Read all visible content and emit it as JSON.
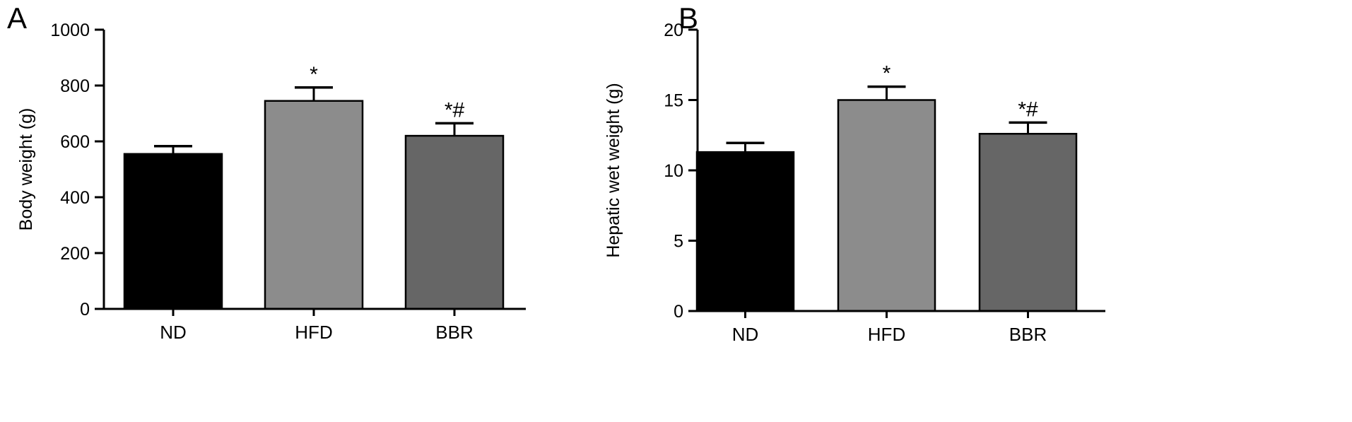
{
  "figure": {
    "panels": [
      {
        "letter": "A"
      },
      {
        "letter": "B"
      }
    ]
  },
  "chart_data": [
    {
      "type": "bar",
      "panel": "A",
      "title": "",
      "xlabel": "",
      "ylabel": "Body weight (g)",
      "ylim": [
        0,
        1000
      ],
      "yticks": [
        0,
        200,
        400,
        600,
        800,
        1000
      ],
      "categories": [
        "ND",
        "HFD",
        "BBR"
      ],
      "values": [
        555,
        745,
        620
      ],
      "errors": [
        28,
        48,
        45
      ],
      "annotations": [
        "",
        "*",
        "*#"
      ],
      "colors": [
        "#000000",
        "#8c8c8c",
        "#666666"
      ],
      "grid": false
    },
    {
      "type": "bar",
      "panel": "B",
      "title": "",
      "xlabel": "",
      "ylabel": "Hepatic wet weight (g)",
      "ylim": [
        0,
        20
      ],
      "yticks": [
        0,
        5,
        10,
        15,
        20
      ],
      "categories": [
        "ND",
        "HFD",
        "BBR"
      ],
      "values": [
        11.3,
        15.0,
        12.6
      ],
      "errors": [
        0.65,
        0.95,
        0.8
      ],
      "annotations": [
        "",
        "*",
        "*#"
      ],
      "colors": [
        "#000000",
        "#8c8c8c",
        "#666666"
      ],
      "grid": false
    }
  ]
}
